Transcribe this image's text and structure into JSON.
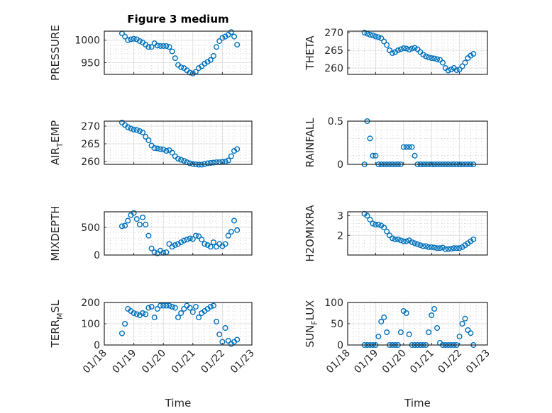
{
  "chart_data": [
    {
      "type": "scatter",
      "title": "Figure 3 medium",
      "ylabel": "PRESSURE",
      "ylim": [
        924,
        1020
      ],
      "yticks": [
        950,
        1000
      ],
      "values": [
        1015,
        1008,
        1000,
        1002,
        1003,
        1002,
        998,
        995,
        990,
        985,
        985,
        993,
        988,
        987,
        987,
        987,
        985,
        975,
        960,
        945,
        940,
        938,
        933,
        928,
        926,
        930,
        938,
        942,
        948,
        952,
        956,
        965,
        985,
        998,
        1005,
        1008,
        1012,
        1018,
        1008,
        990
      ]
    },
    {
      "type": "scatter",
      "title": "",
      "ylabel": "THETA",
      "ylim": [
        258.2,
        270.4
      ],
      "yticks": [
        260,
        265,
        270
      ],
      "values": [
        270,
        269.7,
        269.4,
        269.2,
        268.9,
        268.7,
        268.4,
        267.5,
        266.5,
        265,
        264.2,
        264.5,
        265,
        265.3,
        265.6,
        265.5,
        265.2,
        265.5,
        265.7,
        265.3,
        264.5,
        263.8,
        263.3,
        263,
        262.8,
        262.7,
        262.5,
        262.3,
        261.5,
        260,
        259.3,
        259.6,
        260,
        259.4,
        259.6,
        260.5,
        261.5,
        262.8,
        263.5,
        264
      ]
    },
    {
      "type": "scatter",
      "title": "",
      "ylabel": "AIR_TEMP",
      "ylim": [
        259.2,
        271.4
      ],
      "yticks": [
        260,
        265,
        270
      ],
      "values": [
        271,
        270.3,
        269.7,
        269.3,
        269,
        268.9,
        268.6,
        268.2,
        267,
        266,
        264.5,
        263.8,
        263.7,
        263.5,
        263.4,
        263,
        263.2,
        262.5,
        261.5,
        260.8,
        260.5,
        260.2,
        259.8,
        259.5,
        259.3,
        259.2,
        259.1,
        259.1,
        259.3,
        259.5,
        259.6,
        259.7,
        259.8,
        259.8,
        259.9,
        260,
        260.3,
        261.5,
        263,
        263.5
      ]
    },
    {
      "type": "scatter",
      "title": "",
      "ylabel": "RAINFALL",
      "ylim": [
        0,
        0.5
      ],
      "yticks": [
        0,
        0.5
      ],
      "values": [
        0,
        0.5,
        0.3,
        0.1,
        0.1,
        0,
        0,
        0,
        0,
        0,
        0,
        0,
        0,
        0,
        0.2,
        0.2,
        0.2,
        0.2,
        0.1,
        0,
        0,
        0,
        0,
        0,
        0,
        0,
        0,
        0,
        0,
        0,
        0,
        0,
        0,
        0,
        0,
        0,
        0,
        0,
        0,
        0
      ]
    },
    {
      "type": "scatter",
      "title": "",
      "ylabel": "MIXDEPTH",
      "ylim": [
        0,
        780
      ],
      "yticks": [
        0,
        500
      ],
      "values": [
        520,
        530,
        620,
        720,
        760,
        650,
        550,
        680,
        550,
        350,
        120,
        50,
        30,
        80,
        40,
        50,
        200,
        150,
        180,
        200,
        230,
        260,
        280,
        300,
        290,
        350,
        340,
        280,
        200,
        180,
        150,
        230,
        150,
        200,
        160,
        200,
        350,
        420,
        620,
        450
      ]
    },
    {
      "type": "scatter",
      "title": "",
      "ylabel": "H2OMIXRA",
      "ylim": [
        1.0,
        3.2
      ],
      "yticks": [
        2,
        3
      ],
      "values": [
        3.1,
        3.0,
        2.8,
        2.6,
        2.55,
        2.55,
        2.5,
        2.4,
        2.2,
        2.0,
        1.85,
        1.8,
        1.8,
        1.75,
        1.7,
        1.7,
        1.75,
        1.65,
        1.6,
        1.55,
        1.5,
        1.45,
        1.45,
        1.4,
        1.4,
        1.38,
        1.35,
        1.35,
        1.38,
        1.3,
        1.3,
        1.32,
        1.35,
        1.35,
        1.35,
        1.4,
        1.5,
        1.6,
        1.7,
        1.8
      ]
    },
    {
      "type": "scatter",
      "title": "",
      "ylabel": "TERR_MSL",
      "ylim": [
        0,
        200
      ],
      "yticks": [
        0,
        100,
        200
      ],
      "values": [
        55,
        100,
        170,
        160,
        150,
        145,
        140,
        150,
        145,
        175,
        180,
        130,
        170,
        185,
        185,
        185,
        185,
        180,
        175,
        130,
        150,
        170,
        185,
        175,
        155,
        180,
        130,
        150,
        160,
        170,
        180,
        185,
        110,
        50,
        15,
        80,
        20,
        5,
        15,
        25
      ]
    },
    {
      "type": "scatter",
      "title": "",
      "ylabel": "SUN_FLUX",
      "ylim": [
        0,
        100
      ],
      "yticks": [
        0,
        50,
        100
      ],
      "values": [
        0,
        0,
        0,
        0,
        0,
        20,
        55,
        65,
        30,
        0,
        0,
        0,
        0,
        30,
        80,
        75,
        25,
        0,
        0,
        0,
        0,
        0,
        0,
        30,
        70,
        85,
        40,
        5,
        0,
        0,
        0,
        0,
        0,
        0,
        20,
        50,
        62,
        35,
        28,
        0
      ]
    }
  ],
  "x": {
    "start_day": 18.6,
    "step_day": 0.1,
    "xlim": [
      18,
      23
    ],
    "ticks": [
      18,
      19,
      20,
      21,
      22,
      23
    ],
    "tick_labels": [
      "01/18",
      "01/19",
      "01/20",
      "01/21",
      "01/22",
      "01/23"
    ],
    "xlabel": "Time"
  },
  "colors": {
    "marker": "#0072BD",
    "axis": "#262626",
    "grid": "#DFDFDF"
  }
}
